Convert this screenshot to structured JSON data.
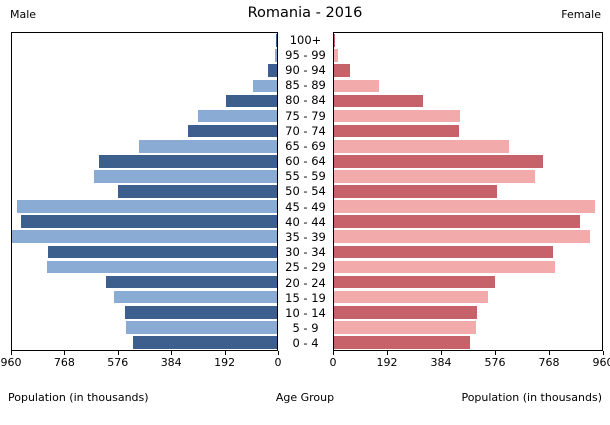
{
  "header": {
    "title": "Romania - 2016",
    "left_label": "Male",
    "right_label": "Female"
  },
  "axis": {
    "male_xlabel": "Population (in thousands)",
    "female_xlabel": "Population (in thousands)",
    "center_xlabel": "Age Group",
    "male_ticks": [
      960,
      768,
      576,
      384,
      192,
      0
    ],
    "female_ticks": [
      0,
      192,
      384,
      576,
      768,
      960
    ]
  },
  "chart_data": {
    "type": "bar",
    "subtype": "population-pyramid",
    "orientation": "horizontal",
    "title": "Romania - 2016",
    "xlabel": "Population (in thousands)",
    "ylabel": "Age Group",
    "xlim": [
      0,
      960
    ],
    "units": "thousands",
    "grid": false,
    "categories_top_to_bottom": true,
    "categories": [
      "100+",
      "95 - 99",
      "90 - 94",
      "85 - 89",
      "80 - 84",
      "75 - 79",
      "70 - 74",
      "65 - 69",
      "60 - 64",
      "55 - 59",
      "50 - 54",
      "45 - 49",
      "40 - 44",
      "35 - 39",
      "30 - 34",
      "25 - 29",
      "20 - 24",
      "15 - 19",
      "10 - 14",
      "5 - 9",
      "0 - 4"
    ],
    "series": [
      {
        "name": "Male",
        "values": [
          2,
          6,
          31,
          87,
          185,
          288,
          324,
          501,
          646,
          662,
          575,
          943,
          929,
          965,
          828,
          835,
          619,
          589,
          550,
          547,
          521
        ]
      },
      {
        "name": "Female",
        "values": [
          4,
          13,
          58,
          162,
          319,
          450,
          446,
          628,
          750,
          720,
          584,
          934,
          882,
          917,
          784,
          791,
          577,
          553,
          514,
          509,
          486
        ]
      }
    ],
    "colors": {
      "male_dark": "#3c5f8d",
      "male_light": "#8aacd4",
      "female_dark": "#c8626a",
      "female_light": "#f2aaaa",
      "axis": "#000000",
      "text": "#000000"
    }
  }
}
